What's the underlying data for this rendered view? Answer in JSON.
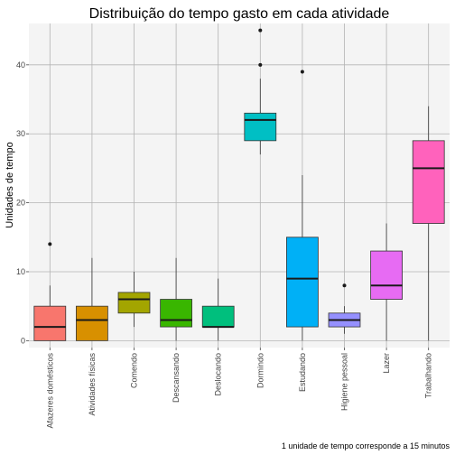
{
  "chart_data": {
    "type": "box",
    "title": "Distribuição do tempo gasto em cada atividade",
    "xlabel": "",
    "ylabel": "Unidades de tempo",
    "caption": "1 unidade de tempo corresponde a 15 minutos",
    "ylim": [
      -1,
      46
    ],
    "yticks": [
      0,
      10,
      20,
      30,
      40
    ],
    "grid": true,
    "legend": "none",
    "categories": [
      "Afazeres domésticos",
      "Atividades físicas",
      "Comendo",
      "Descansando",
      "Deslocando",
      "Dormindo",
      "Estudando",
      "Higiene pessoal",
      "Lazer",
      "Trabalhando"
    ],
    "boxes": [
      {
        "category": "Afazeres domésticos",
        "whisker_low": 0,
        "q1": 0,
        "median": 2,
        "q3": 5,
        "whisker_high": 8,
        "outliers": [
          14
        ],
        "color": "#F8766D"
      },
      {
        "category": "Atividades físicas",
        "whisker_low": 0,
        "q1": 0,
        "median": 3,
        "q3": 5,
        "whisker_high": 12,
        "outliers": [],
        "color": "#D89000"
      },
      {
        "category": "Comendo",
        "whisker_low": 2,
        "q1": 4,
        "median": 6,
        "q3": 7,
        "whisker_high": 10,
        "outliers": [],
        "color": "#A3A500"
      },
      {
        "category": "Descansando",
        "whisker_low": 0,
        "q1": 2,
        "median": 3,
        "q3": 6,
        "whisker_high": 12,
        "outliers": [],
        "color": "#39B600"
      },
      {
        "category": "Deslocando",
        "whisker_low": 0,
        "q1": 2,
        "median": 2,
        "q3": 5,
        "whisker_high": 9,
        "outliers": [],
        "color": "#00BF7D"
      },
      {
        "category": "Dormindo",
        "whisker_low": 27,
        "q1": 29,
        "median": 32,
        "q3": 33,
        "whisker_high": 38,
        "outliers": [
          40,
          45
        ],
        "color": "#00BFC4"
      },
      {
        "category": "Estudando",
        "whisker_low": 0,
        "q1": 2,
        "median": 9,
        "q3": 15,
        "whisker_high": 24,
        "outliers": [
          39
        ],
        "color": "#00B0F6"
      },
      {
        "category": "Higiene pessoal",
        "whisker_low": 1,
        "q1": 2,
        "median": 3,
        "q3": 4,
        "whisker_high": 5,
        "outliers": [
          8
        ],
        "color": "#9590FF"
      },
      {
        "category": "Lazer",
        "whisker_low": 0,
        "q1": 6,
        "median": 8,
        "q3": 13,
        "whisker_high": 17,
        "outliers": [],
        "color": "#E76BF3"
      },
      {
        "category": "Trabalhando",
        "whisker_low": 0,
        "q1": 17,
        "median": 25,
        "q3": 29,
        "whisker_high": 34,
        "outliers": [],
        "color": "#FF62BC"
      }
    ]
  }
}
